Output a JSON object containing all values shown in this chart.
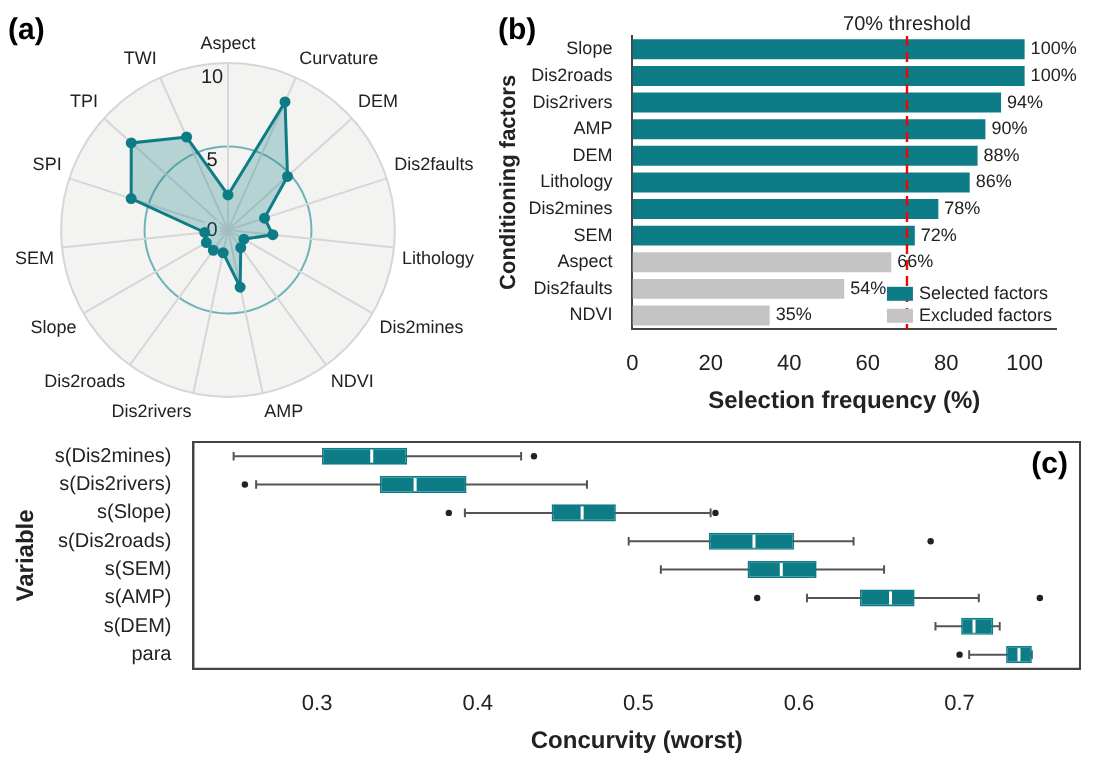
{
  "chart_data": [
    {
      "type": "radar",
      "annotations": [
        "(a)"
      ],
      "categories": [
        "Aspect",
        "Curvature",
        "DEM",
        "Dis2faults",
        "Lithology",
        "Dis2mines",
        "NDVI",
        "AMP",
        "Dis2rivers",
        "Dis2roads",
        "Slope",
        "SEM",
        "SPI",
        "TPI",
        "TWI"
      ],
      "series": [
        {
          "color": "#0e7c86",
          "values": [
            2.1,
            8.4,
            4.8,
            2.3,
            2.7,
            1.1,
            1.3,
            3.5,
            1.4,
            1.5,
            1.5,
            1.4,
            6.1,
            7.8,
            6.1
          ]
        }
      ],
      "ylim": [
        0,
        10
      ],
      "yticks": [
        0,
        5,
        10
      ],
      "marker": "circle",
      "grid": true
    },
    {
      "type": "bar",
      "orientation": "horizontal",
      "annotations": [
        "(b)"
      ],
      "xlabel": "Selection frequency (%)",
      "ylabel": "Conditioning factors",
      "categories": [
        "Slope",
        "Dis2roads",
        "Dis2rivers",
        "AMP",
        "DEM",
        "Lithology",
        "Dis2mines",
        "SEM",
        "Aspect",
        "Dis2faults",
        "NDVI"
      ],
      "series": [
        {
          "name": "Selected factors",
          "color": "#0e7c86",
          "values": [
            100,
            100,
            94,
            90,
            88,
            86,
            78,
            72,
            null,
            null,
            null
          ],
          "value_labels": [
            "100%",
            "100%",
            "94%",
            "90%",
            "88%",
            "86%",
            "78%",
            "72%",
            null,
            null,
            null
          ]
        },
        {
          "name": "Excluded factors",
          "color": "#c4c4c4",
          "values": [
            null,
            null,
            null,
            null,
            null,
            null,
            null,
            null,
            66,
            54,
            35
          ],
          "value_labels": [
            null,
            null,
            null,
            null,
            null,
            null,
            null,
            null,
            "66%",
            "54%",
            "35%"
          ]
        }
      ],
      "xlim": [
        0,
        108
      ],
      "xticks": [
        0,
        20,
        40,
        60,
        80,
        100
      ],
      "legend": "bottom right",
      "grid": false,
      "ref_lines": [
        {
          "axis": "x",
          "value": 70,
          "label": "70% threshold",
          "color": "#ff0000",
          "line_style": "dashed"
        }
      ]
    },
    {
      "type": "box",
      "orientation": "horizontal",
      "annotations": [
        "(c)"
      ],
      "xlabel": "Concurvity (worst)",
      "ylabel": "Variable",
      "categories": [
        "s(Dis2mines)",
        "s(Dis2rivers)",
        "s(Slope)",
        "s(Dis2roads)",
        "s(SEM)",
        "s(AMP)",
        "s(DEM)",
        "para"
      ],
      "series": [
        {
          "color": "#0e7c86",
          "boxes": [
            {
              "low": 0.248,
              "q1": 0.303,
              "median": 0.334,
              "q3": 0.356,
              "high": 0.427,
              "outliers": [
                0.435
              ]
            },
            {
              "low": 0.262,
              "q1": 0.339,
              "median": 0.361,
              "q3": 0.393,
              "high": 0.468,
              "outliers": [
                0.255
              ]
            },
            {
              "low": 0.392,
              "q1": 0.446,
              "median": 0.465,
              "q3": 0.486,
              "high": 0.545,
              "outliers": [
                0.382,
                0.548
              ]
            },
            {
              "low": 0.494,
              "q1": 0.544,
              "median": 0.572,
              "q3": 0.597,
              "high": 0.634,
              "outliers": [
                0.682
              ]
            },
            {
              "low": 0.514,
              "q1": 0.568,
              "median": 0.589,
              "q3": 0.611,
              "high": 0.653
            },
            {
              "low": 0.605,
              "q1": 0.638,
              "median": 0.657,
              "q3": 0.672,
              "high": 0.712,
              "outliers": [
                0.574,
                0.75
              ]
            },
            {
              "low": 0.685,
              "q1": 0.701,
              "median": 0.709,
              "q3": 0.721,
              "high": 0.725
            },
            {
              "low": 0.706,
              "q1": 0.729,
              "median": 0.737,
              "q3": 0.745,
              "high": 0.745,
              "outliers": [
                0.7
              ]
            }
          ]
        }
      ],
      "xlim": [
        0.223,
        0.775
      ],
      "xticks": [
        0.3,
        0.4,
        0.5,
        0.6,
        0.7
      ],
      "grid": false
    }
  ]
}
